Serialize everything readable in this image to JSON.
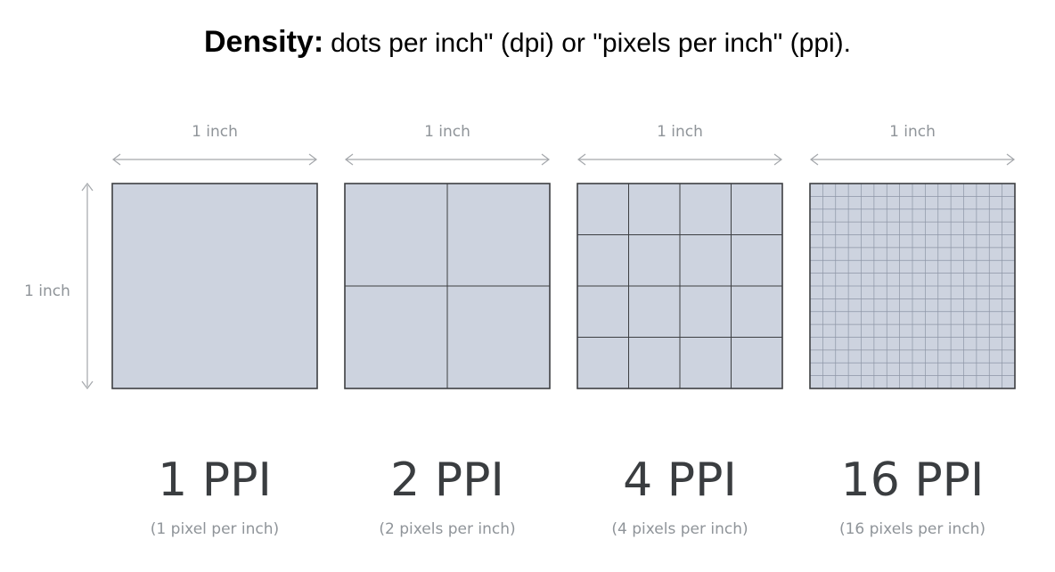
{
  "title": {
    "bold": "Density:",
    "rest": "dots per inch\" (dpi) or \"pixels per inch\" (ppi)."
  },
  "dimension_label": "1 inch",
  "colors": {
    "panel_fill": "#cdd3df",
    "panel_border": "#3d3f42",
    "label_text": "#8f9499",
    "ppi_text": "#3a3d40"
  },
  "panels": [
    {
      "ppi": 1,
      "width_label": "1 inch",
      "ppi_label": "1 PPI",
      "caption": "(1 pixel per inch)"
    },
    {
      "ppi": 2,
      "width_label": "1 inch",
      "ppi_label": "2 PPI",
      "caption": "(2 pixels per inch)"
    },
    {
      "ppi": 4,
      "width_label": "1 inch",
      "ppi_label": "4 PPI",
      "caption": "(4 pixels per inch)"
    },
    {
      "ppi": 16,
      "width_label": "1 inch",
      "ppi_label": "16 PPI",
      "caption": "(16 pixels per inch)"
    }
  ]
}
